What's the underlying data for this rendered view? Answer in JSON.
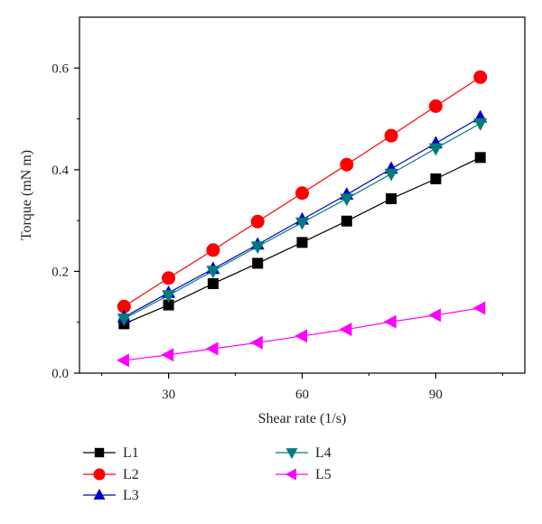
{
  "chart_data": {
    "type": "line",
    "title": "",
    "xlabel": "Shear rate (1/s)",
    "ylabel": "Torque (mN m)",
    "xlim": [
      10,
      110
    ],
    "ylim": [
      0,
      0.7
    ],
    "xticks": [
      30,
      60,
      90
    ],
    "yticks": [
      0.0,
      0.2,
      0.4,
      0.6
    ],
    "xtick_labels": [
      "30",
      "60",
      "90"
    ],
    "ytick_labels": [
      "0.0",
      "0.2",
      "0.4",
      "0.6"
    ],
    "grid": false,
    "legend_position": "below-plot",
    "x": [
      20,
      30,
      40,
      50,
      60,
      70,
      80,
      90,
      100
    ],
    "series": [
      {
        "name": "L1",
        "color": "#000000",
        "marker": "square",
        "values": [
          0.097,
          0.134,
          0.176,
          0.216,
          0.257,
          0.299,
          0.343,
          0.382,
          0.424
        ]
      },
      {
        "name": "L2",
        "color": "#ff0000",
        "marker": "circle",
        "values": [
          0.131,
          0.187,
          0.242,
          0.298,
          0.354,
          0.41,
          0.467,
          0.525,
          0.582
        ]
      },
      {
        "name": "L3",
        "color": "#0000cc",
        "marker": "triangle-up",
        "values": [
          0.11,
          0.158,
          0.205,
          0.253,
          0.302,
          0.351,
          0.402,
          0.452,
          0.503
        ]
      },
      {
        "name": "L4",
        "color": "#007c7c",
        "marker": "triangle-down",
        "values": [
          0.107,
          0.153,
          0.201,
          0.249,
          0.296,
          0.343,
          0.392,
          0.442,
          0.491
        ]
      },
      {
        "name": "L5",
        "color": "#ff00ff",
        "marker": "triangle-left",
        "values": [
          0.025,
          0.036,
          0.048,
          0.06,
          0.073,
          0.086,
          0.101,
          0.114,
          0.128
        ]
      }
    ]
  }
}
